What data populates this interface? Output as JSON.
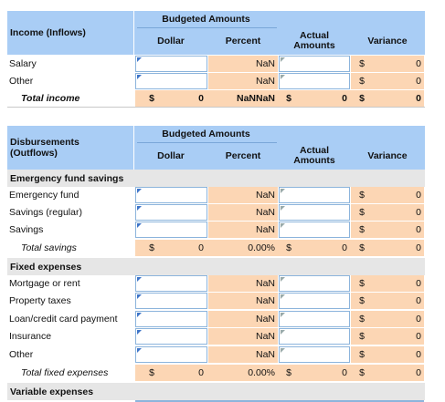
{
  "income": {
    "budgeted_header": "Budgeted Amounts",
    "section_label": "Income (Inflows)",
    "col_dollar": "Dollar",
    "col_percent": "Percent",
    "col_actual": "Actual Amounts",
    "col_variance": "Variance",
    "rows": [
      {
        "label": "Salary",
        "percent": "NaN",
        "currency": "$",
        "variance": "0"
      },
      {
        "label": "Other",
        "percent": "NaN",
        "currency": "$",
        "variance": "0"
      }
    ],
    "total": {
      "label": "Total income",
      "dollar_symbol": "$",
      "dollar_value": "0",
      "percent": "NaNNaN",
      "actual_symbol": "$",
      "actual_value": "0",
      "variance_symbol": "$",
      "variance_value": "0"
    }
  },
  "disbursements": {
    "budgeted_header": "Budgeted Amounts",
    "section_label": "Disbursements (Outflows)",
    "col_dollar": "Dollar",
    "col_percent": "Percent",
    "col_actual": "Actual Amounts",
    "col_variance": "Variance",
    "emergency": {
      "title": "Emergency fund savings",
      "rows": [
        {
          "label": "Emergency fund",
          "percent": "NaN",
          "currency": "$",
          "variance": "0"
        },
        {
          "label": "Savings (regular)",
          "percent": "NaN",
          "currency": "$",
          "variance": "0"
        },
        {
          "label": "Savings",
          "percent": "NaN",
          "currency": "$",
          "variance": "0"
        }
      ],
      "total": {
        "label": "Total savings",
        "dollar_symbol": "$",
        "dollar_value": "0",
        "percent": "0.00%",
        "actual_symbol": "$",
        "actual_value": "0",
        "variance_symbol": "$",
        "variance_value": "0"
      }
    },
    "fixed": {
      "title": "Fixed expenses",
      "rows": [
        {
          "label": "Mortgage or rent",
          "percent": "NaN",
          "currency": "$",
          "variance": "0"
        },
        {
          "label": "Property taxes",
          "percent": "NaN",
          "currency": "$",
          "variance": "0"
        },
        {
          "label": "Loan/credit card payment",
          "percent": "NaN",
          "currency": "$",
          "variance": "0"
        },
        {
          "label": "Insurance",
          "percent": "NaN",
          "currency": "$",
          "variance": "0"
        },
        {
          "label": "Other",
          "percent": "NaN",
          "currency": "$",
          "variance": "0"
        }
      ],
      "total": {
        "label": "Total fixed expenses",
        "dollar_symbol": "$",
        "dollar_value": "0",
        "percent": "0.00%",
        "actual_symbol": "$",
        "actual_value": "0",
        "variance_symbol": "$",
        "variance_value": "0"
      }
    },
    "variable_title": "Variable expenses"
  },
  "colors": {
    "header": "#a9cdf5",
    "peach": "#fcd6b4",
    "gray": "#e6e6e6",
    "input_border": "#8cb4dc",
    "triangle": "#3d74c8"
  }
}
